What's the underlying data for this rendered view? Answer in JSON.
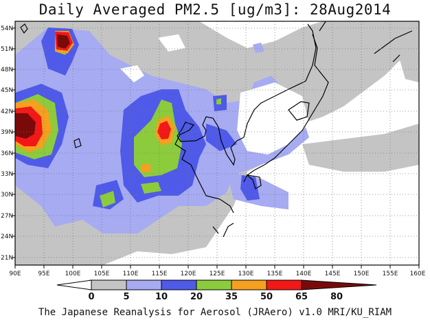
{
  "title": "Daily Averaged PM2.5 [ug/m3]: 28Aug2014",
  "credit": "The Japanese Reanalysis for Aerosol (JRAero) v1.0 MRI/KU_RIAM",
  "map": {
    "lon_range": [
      90,
      160
    ],
    "lat_range": [
      20,
      55
    ],
    "lon_ticks": [
      "90E",
      "95E",
      "100E",
      "105E",
      "110E",
      "115E",
      "120E",
      "125E",
      "130E",
      "135E",
      "140E",
      "145E",
      "150E",
      "155E",
      "160E"
    ],
    "lat_ticks": [
      "54N",
      "51N",
      "48N",
      "45N",
      "42N",
      "39N",
      "36N",
      "33N",
      "30N",
      "27N",
      "24N",
      "21N"
    ],
    "gridlines": "dotted"
  },
  "colorbar": {
    "labels": [
      "0",
      "5",
      "10",
      "20",
      "35",
      "50",
      "65",
      "80"
    ],
    "colors": [
      "#ffffff",
      "#c4c4c4",
      "#a6abf2",
      "#4f5ae8",
      "#8ccc3c",
      "#f5a01e",
      "#f21818",
      "#7a0a0a"
    ]
  }
}
